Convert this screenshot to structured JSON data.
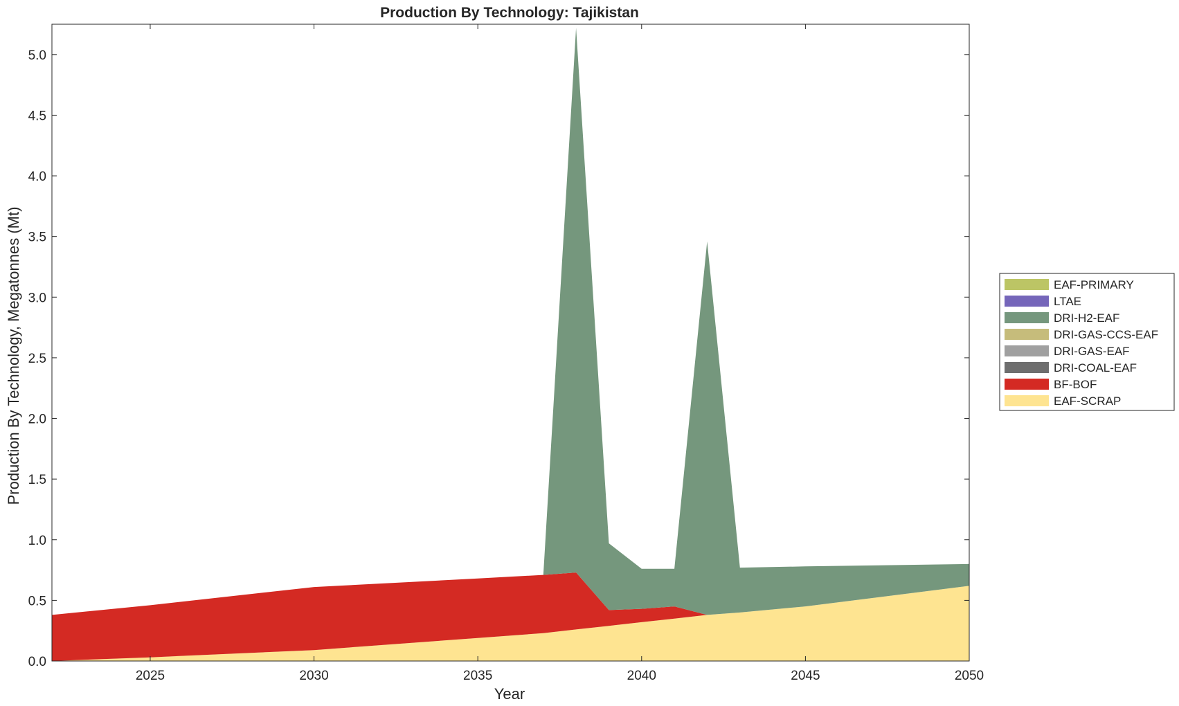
{
  "chart_data": {
    "type": "area",
    "stacked": true,
    "title": "Production By Technology: Tajikistan",
    "xlabel": "Year",
    "ylabel": "Production By Technology, Megatonnes (Mt)",
    "xlim": [
      2022,
      2050
    ],
    "ylim": [
      0,
      5.25
    ],
    "xticks": [
      2025,
      2030,
      2035,
      2040,
      2045,
      2050
    ],
    "yticks": [
      0.0,
      0.5,
      1.0,
      1.5,
      2.0,
      2.5,
      3.0,
      3.5,
      4.0,
      4.5,
      5.0
    ],
    "ytick_labels": [
      "0.0",
      "0.5",
      "1.0",
      "1.5",
      "2.0",
      "2.5",
      "3.0",
      "3.5",
      "4.0",
      "4.5",
      "5.0"
    ],
    "grid": false,
    "legend_position": "right",
    "x": [
      2022,
      2025,
      2030,
      2035,
      2037,
      2038,
      2039,
      2040,
      2041,
      2042,
      2043,
      2045,
      2050
    ],
    "series": [
      {
        "name": "EAF-SCRAP",
        "color": "#FEE491",
        "values": [
          0.0,
          0.03,
          0.09,
          0.19,
          0.23,
          0.26,
          0.29,
          0.32,
          0.35,
          0.38,
          0.4,
          0.45,
          0.62
        ]
      },
      {
        "name": "BF-BOF",
        "color": "#D42A23",
        "values": [
          0.38,
          0.43,
          0.52,
          0.49,
          0.48,
          0.47,
          0.13,
          0.11,
          0.1,
          0.0,
          0.0,
          0.0,
          0.0
        ]
      },
      {
        "name": "DRI-COAL-EAF",
        "color": "#6E6E6E",
        "values": [
          0,
          0,
          0,
          0,
          0,
          0,
          0,
          0,
          0,
          0,
          0,
          0,
          0
        ]
      },
      {
        "name": "DRI-GAS-EAF",
        "color": "#A0A0A0",
        "values": [
          0,
          0,
          0,
          0,
          0,
          0,
          0,
          0,
          0,
          0,
          0,
          0,
          0
        ]
      },
      {
        "name": "DRI-GAS-CCS-EAF",
        "color": "#C6BC7B",
        "values": [
          0,
          0,
          0,
          0,
          0,
          0,
          0,
          0,
          0,
          0,
          0,
          0,
          0
        ]
      },
      {
        "name": "DRI-H2-EAF",
        "color": "#75977D",
        "values": [
          0.0,
          0.0,
          0.0,
          0.0,
          0.0,
          4.49,
          0.55,
          0.33,
          0.31,
          3.08,
          0.37,
          0.33,
          0.18
        ]
      },
      {
        "name": "LTAE",
        "color": "#7566BA",
        "values": [
          0,
          0,
          0,
          0,
          0,
          0,
          0,
          0,
          0,
          0,
          0,
          0,
          0
        ]
      },
      {
        "name": "EAF-PRIMARY",
        "color": "#BCC565",
        "values": [
          0,
          0,
          0,
          0,
          0,
          0,
          0,
          0,
          0,
          0,
          0,
          0,
          0
        ]
      }
    ],
    "legend_order": [
      "EAF-PRIMARY",
      "LTAE",
      "DRI-H2-EAF",
      "DRI-GAS-CCS-EAF",
      "DRI-GAS-EAF",
      "DRI-COAL-EAF",
      "BF-BOF",
      "EAF-SCRAP"
    ]
  }
}
